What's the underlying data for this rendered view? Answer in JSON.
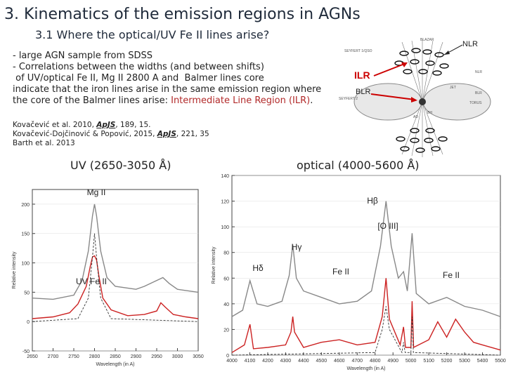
{
  "slide": {
    "title": "3. Kinematics of the emission regions in AGNs",
    "subtitle": "3.1 Where the optical/UV Fe II lines arise?",
    "bullet_1": "- large AGN sample from SDSS",
    "bullet_2": "- Correlations between the widths (and between shifts)",
    "bullet_3": " of UV/optical Fe II, Mg II 2800 A and  Balmer lines core",
    "bullet_4": "indicate that the iron lines arise in the same emission region where",
    "bullet_5_pre": "the core of the Balmer lines arise: ",
    "bullet_5_red": "Intermediate Line Region (ILR)",
    "bullet_5_post": ".",
    "ref_1_pre": "Kovačević et al. 2010, ",
    "ref_1_journal": "ApJS",
    "ref_1_post": ", 189, 15.",
    "ref_2_pre": "Kovačević-Dojčinović & Popović, 2015, ",
    "ref_2_journal": "ApJS",
    "ref_2_post": ", 221, 35",
    "ref_3": "Barth et al. 2013"
  },
  "diagram": {
    "nlr_label": "NLR",
    "ilr_label": "ILR",
    "blr_label": "BLR",
    "blazar_label": "BLAZAR",
    "seyfert1_label": "SEYFERT 1/QSO",
    "seyfert2_label": "SEYFERT 2",
    "nlr_small": "NLR",
    "blr_small": "BLR",
    "torus_label": "TORUS",
    "jet_label": "JET",
    "bh_label": "BH",
    "ad_label": "AD",
    "colors": {
      "ilr": "#cc0000",
      "arrow": "#cc0000",
      "nlr_arrow": "#222222"
    }
  },
  "panels": {
    "uv_label": "UV (2650-3050 Å)",
    "optical_label": "optical (4000-5600 Å)"
  },
  "chart_data": [
    {
      "type": "line",
      "title": "",
      "xlabel": "Wavelength (in A)",
      "ylabel": "Relative intensity",
      "xlim": [
        2650,
        3050
      ],
      "ylim": [
        -50,
        225
      ],
      "xticks": [
        2650,
        2700,
        2750,
        2800,
        2850,
        2900,
        2950,
        3000,
        3050
      ],
      "yticks": [
        -50,
        0,
        50,
        100,
        150,
        200
      ],
      "annotations": [
        "Mg II",
        "UV Fe II"
      ],
      "series": [
        {
          "color": "#888888",
          "x": [
            2650,
            2700,
            2750,
            2770,
            2785,
            2795,
            2800,
            2805,
            2815,
            2830,
            2850,
            2900,
            2920,
            2950,
            2965,
            2980,
            3000,
            3050
          ],
          "y": [
            40,
            38,
            45,
            70,
            120,
            180,
            200,
            180,
            120,
            75,
            60,
            55,
            60,
            70,
            75,
            65,
            55,
            50
          ]
        },
        {
          "color": "#cc2222",
          "x": [
            2650,
            2700,
            2740,
            2760,
            2780,
            2790,
            2795,
            2800,
            2805,
            2810,
            2820,
            2840,
            2880,
            2920,
            2950,
            2960,
            2970,
            2990,
            3020,
            3050
          ],
          "y": [
            5,
            8,
            15,
            30,
            60,
            95,
            110,
            112,
            105,
            80,
            40,
            20,
            10,
            12,
            18,
            32,
            25,
            12,
            8,
            5
          ]
        },
        {
          "color": "#333333",
          "dash": true,
          "x": [
            2650,
            2760,
            2785,
            2795,
            2800,
            2805,
            2815,
            2840,
            3050
          ],
          "y": [
            0,
            5,
            40,
            110,
            150,
            110,
            40,
            5,
            0
          ]
        }
      ]
    },
    {
      "type": "line",
      "title": "",
      "xlabel": "Wavelength (in A)",
      "ylabel": "Relative intensity",
      "xlim": [
        4000,
        5500
      ],
      "ylim": [
        0,
        140
      ],
      "xticks": [
        4000,
        4100,
        4200,
        4300,
        4400,
        4500,
        4600,
        4700,
        4800,
        4900,
        5000,
        5100,
        5200,
        5300,
        5400,
        5500
      ],
      "yticks": [
        0,
        20,
        40,
        60,
        80,
        100,
        120,
        140
      ],
      "annotations": [
        "Hβ",
        "[O III]",
        "Hγ",
        "Hδ",
        "Fe II",
        "Fe II"
      ],
      "series": [
        {
          "color": "#888888",
          "x": [
            4000,
            4060,
            4101,
            4140,
            4200,
            4280,
            4320,
            4340,
            4360,
            4400,
            4500,
            4600,
            4700,
            4780,
            4830,
            4861,
            4890,
            4930,
            4959,
            4980,
            5007,
            5030,
            5100,
            5200,
            5300,
            5400,
            5500
          ],
          "y": [
            30,
            35,
            58,
            40,
            38,
            42,
            62,
            86,
            60,
            50,
            45,
            40,
            42,
            50,
            85,
            120,
            85,
            60,
            65,
            50,
            95,
            48,
            40,
            45,
            38,
            35,
            30
          ]
        },
        {
          "color": "#cc2222",
          "x": [
            4000,
            4070,
            4101,
            4120,
            4200,
            4300,
            4330,
            4340,
            4350,
            4400,
            4500,
            4600,
            4700,
            4800,
            4840,
            4861,
            4880,
            4940,
            4959,
            4970,
            5000,
            5007,
            5015,
            5100,
            5150,
            5200,
            5250,
            5300,
            5350,
            5400,
            5500
          ],
          "y": [
            2,
            8,
            24,
            5,
            6,
            8,
            18,
            30,
            18,
            6,
            10,
            12,
            8,
            10,
            30,
            60,
            28,
            8,
            22,
            6,
            6,
            42,
            6,
            12,
            26,
            14,
            28,
            18,
            10,
            8,
            4
          ]
        },
        {
          "color": "#333333",
          "dash": true,
          "x": [
            4000,
            4800,
            4840,
            4861,
            4880,
            4950,
            4959,
            4968,
            5000,
            5007,
            5014,
            5500
          ],
          "y": [
            0,
            2,
            20,
            38,
            20,
            2,
            10,
            2,
            2,
            30,
            2,
            0
          ]
        }
      ]
    }
  ]
}
